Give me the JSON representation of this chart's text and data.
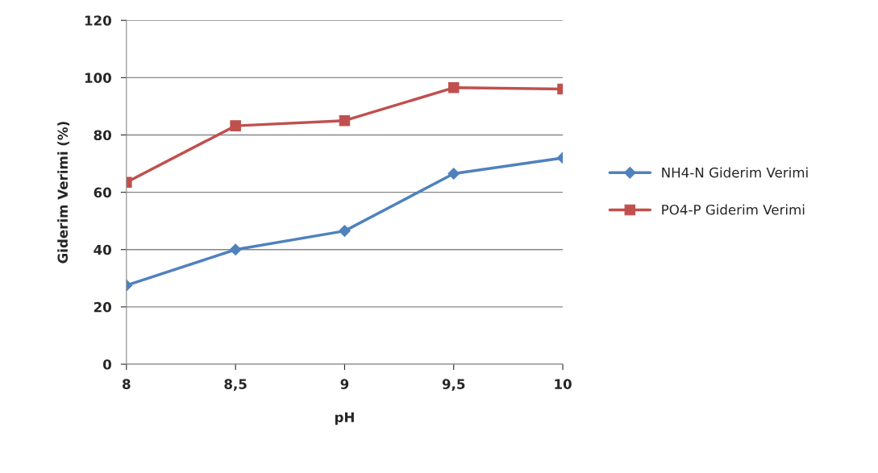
{
  "chart_data": {
    "type": "line",
    "xlabel": "pH",
    "ylabel": "Giderim Verimi (%)",
    "x": [
      8,
      8.5,
      9,
      9.5,
      10
    ],
    "xlim": [
      8,
      10
    ],
    "xticks": [
      8,
      {
        "value": 8.5,
        "label": "8,5"
      },
      9,
      {
        "value": 9.5,
        "label": "9,5"
      },
      10
    ],
    "ylim": [
      0,
      120
    ],
    "yticks": [
      0,
      20,
      40,
      60,
      80,
      100,
      120
    ],
    "grid": "y",
    "legend": "right",
    "series": [
      {
        "name": "NH4-N Giderim Verimi",
        "color": "#4f81bd",
        "marker": "diamond",
        "values": [
          27.5,
          40,
          46.5,
          66.5,
          72
        ]
      },
      {
        "name": "PO4-P Giderim Verimi",
        "color": "#c0504d",
        "marker": "square",
        "values": [
          63.5,
          83.2,
          85,
          96.5,
          96
        ]
      }
    ]
  }
}
